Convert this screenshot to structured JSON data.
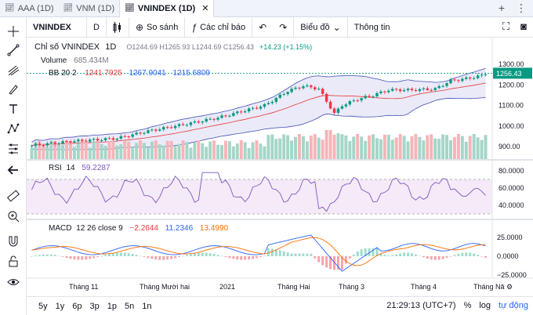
{
  "tabs": [
    {
      "label": "AAA (1D)",
      "active": false
    },
    {
      "label": "VNM (1D)",
      "active": false
    },
    {
      "label": "VNINDEX (1D)",
      "active": true
    }
  ],
  "tabbar_right": {
    "add": "+",
    "more": "⋮"
  },
  "toolbar": {
    "symbol": "VNINDEX",
    "interval": "D",
    "compare_label": "So sánh",
    "indicators_label": "Các chỉ báo",
    "chart_type_label": "Biểu đồ",
    "info_label": "Thông tin"
  },
  "main_legend": {
    "title": "Chỉ số VNINDEX",
    "interval": "1D",
    "ohlc": "O1244.69  H1265.93  L1244.69  C1256.43",
    "change": "+14.23 (+1.15%)"
  },
  "volume_legend": {
    "label": "Volume",
    "value": "685.434M"
  },
  "bb_legend": {
    "label": "BB 20 2",
    "basis": "1241.7925",
    "upper": "1267.9041",
    "lower": "1215.6809"
  },
  "rsi_legend": {
    "label": "RSI",
    "period": "14",
    "value": "59.2287"
  },
  "macd_legend": {
    "label": "MACD",
    "params": "12 26 close 9",
    "hist": "−2.2644",
    "macd": "11.2346",
    "signal": "13.4990"
  },
  "price_axis": {
    "ticks": [
      "1300.00",
      "1200.00",
      "1100.00",
      "1000.00",
      "900.00"
    ],
    "last_price": "1256.43"
  },
  "rsi_axis": {
    "ticks": [
      "80.0000",
      "60.0000",
      "40.0000"
    ]
  },
  "macd_axis": {
    "ticks": [
      "25.0000",
      "0.0000",
      "−25.0000"
    ]
  },
  "time_axis": {
    "labels": [
      "Tháng 11",
      "Tháng Mười hai",
      "2021",
      "Tháng Hai",
      "Tháng 3",
      "Tháng 4",
      "Tháng Nă"
    ]
  },
  "bottombar": {
    "ranges": [
      "5y",
      "1y",
      "6p",
      "3p",
      "1p",
      "5n",
      "1n"
    ],
    "time": "21:29:13 (UTC+7)",
    "percent": "%",
    "log": "log",
    "auto": "tự động"
  },
  "colors": {
    "up": "#089981",
    "down": "#f23645",
    "bb_fill": "#e3e1f7",
    "bb_line": "#3f51b5",
    "basis": "#e53935",
    "rsi": "#7e57c2",
    "macd": "#2962ff",
    "signal": "#ff6d00"
  }
}
